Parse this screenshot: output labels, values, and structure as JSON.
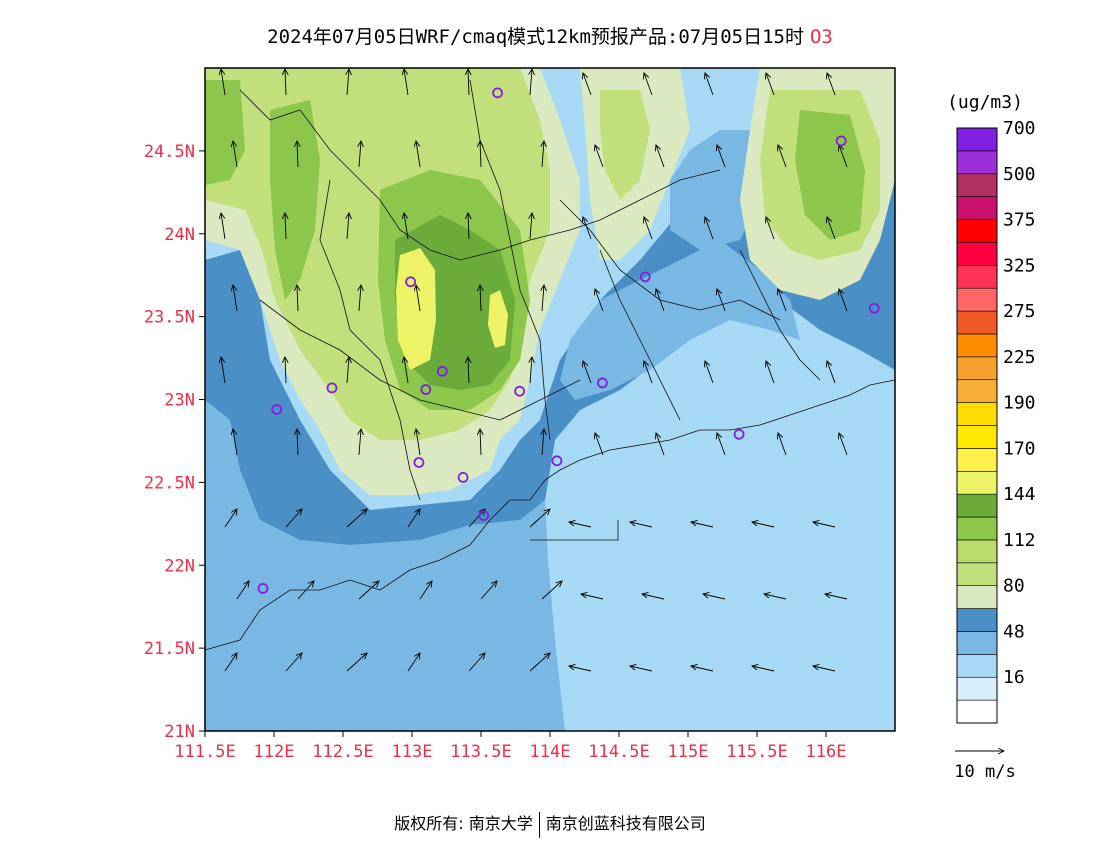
{
  "title": {
    "main": "2024年07月05日WRF/cmaq模式12km预报产品:07月05日15时",
    "pollutant": "O3"
  },
  "legend": {
    "unit": "(ug/m3)",
    "levels": [
      {
        "label": "",
        "color": "#ffffff"
      },
      {
        "label": "16",
        "color": "#d8eefa"
      },
      {
        "label": "",
        "color": "#a6d9f4"
      },
      {
        "label": "48",
        "color": "#7ab8e4"
      },
      {
        "label": "",
        "color": "#4a8fc6"
      },
      {
        "label": "80",
        "color": "#dbe9c0"
      },
      {
        "label": "",
        "color": "#c1df7a"
      },
      {
        "label": "112",
        "color": "#b9dc6a"
      },
      {
        "label": "",
        "color": "#8cc64a"
      },
      {
        "label": "144",
        "color": "#6aab3a"
      },
      {
        "label": "",
        "color": "#eef266"
      },
      {
        "label": "170",
        "color": "#fff04a"
      },
      {
        "label": "",
        "color": "#ffe900"
      },
      {
        "label": "190",
        "color": "#ffdd00"
      },
      {
        "label": "",
        "color": "#f7ae35"
      },
      {
        "label": "225",
        "color": "#f5a12d"
      },
      {
        "label": "",
        "color": "#ff8c00"
      },
      {
        "label": "275",
        "color": "#f05a28"
      },
      {
        "label": "",
        "color": "#ff6666"
      },
      {
        "label": "325",
        "color": "#ff3355"
      },
      {
        "label": "",
        "color": "#ff0040"
      },
      {
        "label": "375",
        "color": "#ff0000"
      },
      {
        "label": "",
        "color": "#c8106c"
      },
      {
        "label": "500",
        "color": "#b03060"
      },
      {
        "label": "",
        "color": "#9b30d9"
      },
      {
        "label": "700",
        "color": "#8020e0"
      }
    ]
  },
  "wind_scale": "10 m/s",
  "axes": {
    "lat_labels": [
      "24.5N",
      "24N",
      "23.5N",
      "23N",
      "22.5N",
      "22N",
      "21.5N",
      "21N"
    ],
    "lon_labels": [
      "111.5E",
      "112E",
      "112.5E",
      "113E",
      "113.5E",
      "114E",
      "114.5E",
      "115E",
      "115.5E",
      "116E"
    ],
    "lat_values": [
      24.5,
      24,
      23.5,
      23,
      22.5,
      22,
      21.5,
      21
    ],
    "lon_values": [
      111.5,
      112,
      112.5,
      113,
      113.5,
      114,
      114.5,
      115,
      115.5,
      116
    ],
    "lon_range": [
      111.5,
      116.5
    ],
    "lat_range": [
      21,
      25
    ]
  },
  "stations": [
    {
      "lon": 113.62,
      "lat": 24.85
    },
    {
      "lon": 116.11,
      "lat": 24.56
    },
    {
      "lon": 112.99,
      "lat": 23.71
    },
    {
      "lon": 114.69,
      "lat": 23.74
    },
    {
      "lon": 116.35,
      "lat": 23.55
    },
    {
      "lon": 113.22,
      "lat": 23.17
    },
    {
      "lon": 112.42,
      "lat": 23.07
    },
    {
      "lon": 113.1,
      "lat": 23.06
    },
    {
      "lon": 113.78,
      "lat": 23.05
    },
    {
      "lon": 114.38,
      "lat": 23.1
    },
    {
      "lon": 112.02,
      "lat": 22.94
    },
    {
      "lon": 115.37,
      "lat": 22.79
    },
    {
      "lon": 113.05,
      "lat": 22.62
    },
    {
      "lon": 114.05,
      "lat": 22.63
    },
    {
      "lon": 113.37,
      "lat": 22.53
    },
    {
      "lon": 113.52,
      "lat": 22.3
    },
    {
      "lon": 111.92,
      "lat": 21.86
    }
  ],
  "footer": {
    "left": "版权所有: 南京大学",
    "right": "南京创蓝科技有限公司"
  }
}
